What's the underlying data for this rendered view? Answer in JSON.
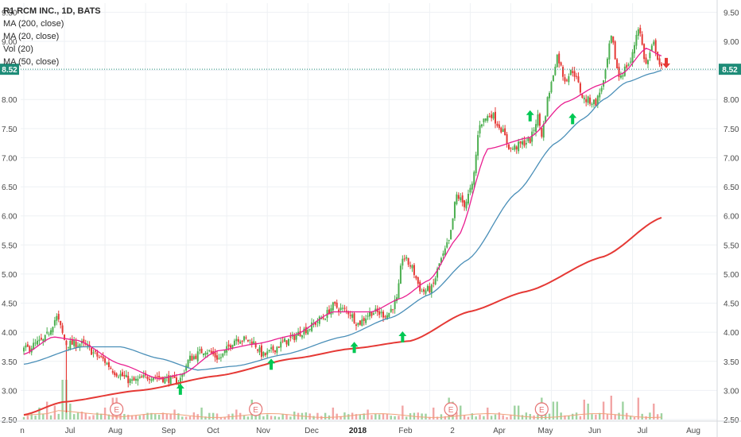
{
  "legend": {
    "title": "R1 RCM INC., 1D, BATS",
    "studies": [
      "MA (200, close)",
      "MA (20, close)",
      "Vol (20)",
      "MA (50, close)"
    ]
  },
  "price_marker": "8.52",
  "earnings_marker": "E",
  "colors": {
    "up": "#4caf50",
    "down": "#e53935",
    "ma200": "#e53935",
    "ma20": "#e91e90",
    "ma50": "#4a8fb8",
    "arrow_up": "#00c853",
    "arrow_down": "#e53935",
    "price_line": "#1e8c78",
    "grid": "#eef1f4",
    "axis_text": "#4a4a4a",
    "earnings": "#e57373"
  },
  "chart_data": {
    "type": "candlestick",
    "title": "R1 RCM INC., 1D, BATS",
    "ylim": [
      2.2,
      9.6
    ],
    "y_ticks": [
      "2.50",
      "3.00",
      "3.50",
      "4.00",
      "4.50",
      "5.00",
      "5.50",
      "6.00",
      "6.50",
      "7.00",
      "7.50",
      "8.00",
      "8.50",
      "9.00",
      "9.50"
    ],
    "x_tick_labels": [
      "n",
      "Jul",
      "Aug",
      "Sep",
      "Oct",
      "Nov",
      "Dec",
      "2018",
      "Feb",
      "2",
      "Apr",
      "May",
      "Jun",
      "Jul",
      "Aug"
    ],
    "current_price": 8.52,
    "price_keyframes": [
      [
        0,
        3.7
      ],
      [
        10,
        3.85
      ],
      [
        17,
        4.25
      ],
      [
        22,
        3.8
      ],
      [
        30,
        3.8
      ],
      [
        40,
        3.55
      ],
      [
        48,
        3.3
      ],
      [
        56,
        3.15
      ],
      [
        66,
        3.25
      ],
      [
        74,
        3.2
      ],
      [
        80,
        3.15
      ],
      [
        86,
        3.55
      ],
      [
        94,
        3.7
      ],
      [
        101,
        3.55
      ],
      [
        110,
        3.9
      ],
      [
        118,
        3.85
      ],
      [
        124,
        3.6
      ],
      [
        136,
        3.85
      ],
      [
        146,
        4.05
      ],
      [
        155,
        4.25
      ],
      [
        160,
        4.45
      ],
      [
        168,
        4.35
      ],
      [
        173,
        4.15
      ],
      [
        180,
        4.35
      ],
      [
        188,
        4.3
      ],
      [
        193,
        4.55
      ],
      [
        196,
        5.3
      ],
      [
        200,
        5.15
      ],
      [
        206,
        4.7
      ],
      [
        211,
        4.75
      ],
      [
        216,
        5.25
      ],
      [
        220,
        5.55
      ],
      [
        224,
        6.35
      ],
      [
        228,
        6.2
      ],
      [
        232,
        6.5
      ],
      [
        236,
        7.6
      ],
      [
        242,
        7.75
      ],
      [
        246,
        7.55
      ],
      [
        252,
        7.15
      ],
      [
        262,
        7.3
      ],
      [
        266,
        7.7
      ],
      [
        268,
        7.4
      ],
      [
        272,
        8.15
      ],
      [
        276,
        8.75
      ],
      [
        280,
        8.35
      ],
      [
        284,
        8.5
      ],
      [
        290,
        8.0
      ],
      [
        296,
        7.95
      ],
      [
        300,
        8.3
      ],
      [
        304,
        9.05
      ],
      [
        308,
        8.4
      ],
      [
        314,
        8.65
      ],
      [
        318,
        9.25
      ],
      [
        322,
        8.6
      ],
      [
        326,
        8.95
      ],
      [
        330,
        8.52
      ]
    ],
    "ma200_keyframes": [
      [
        0,
        2.58
      ],
      [
        20,
        2.8
      ],
      [
        60,
        3.0
      ],
      [
        100,
        3.25
      ],
      [
        140,
        3.55
      ],
      [
        170,
        3.72
      ],
      [
        200,
        3.85
      ],
      [
        230,
        4.35
      ],
      [
        260,
        4.7
      ],
      [
        300,
        5.3
      ],
      [
        330,
        5.97
      ]
    ],
    "ma50_keyframes": [
      [
        0,
        3.45
      ],
      [
        30,
        3.75
      ],
      [
        50,
        3.75
      ],
      [
        70,
        3.55
      ],
      [
        90,
        3.35
      ],
      [
        110,
        3.42
      ],
      [
        135,
        3.62
      ],
      [
        165,
        3.92
      ],
      [
        190,
        4.25
      ],
      [
        210,
        4.65
      ],
      [
        230,
        5.25
      ],
      [
        255,
        6.4
      ],
      [
        275,
        7.25
      ],
      [
        290,
        7.68
      ],
      [
        300,
        8.0
      ],
      [
        312,
        8.3
      ],
      [
        325,
        8.45
      ],
      [
        330,
        8.5
      ]
    ],
    "ma20_keyframes": [
      [
        0,
        3.62
      ],
      [
        15,
        3.92
      ],
      [
        28,
        3.86
      ],
      [
        50,
        3.45
      ],
      [
        70,
        3.2
      ],
      [
        82,
        3.28
      ],
      [
        100,
        3.68
      ],
      [
        120,
        3.8
      ],
      [
        140,
        3.95
      ],
      [
        160,
        4.35
      ],
      [
        180,
        4.35
      ],
      [
        195,
        4.58
      ],
      [
        210,
        4.9
      ],
      [
        225,
        5.65
      ],
      [
        240,
        7.15
      ],
      [
        262,
        7.35
      ],
      [
        280,
        7.95
      ],
      [
        298,
        8.25
      ],
      [
        310,
        8.45
      ],
      [
        322,
        8.88
      ],
      [
        330,
        8.75
      ]
    ],
    "up_arrows": [
      [
        81,
        3.02
      ],
      [
        128,
        3.45
      ],
      [
        171,
        3.74
      ],
      [
        196,
        3.92
      ],
      [
        262,
        7.72
      ],
      [
        284,
        7.67
      ]
    ],
    "down_arrow": [
      330,
      8.62
    ],
    "earnings_days": [
      48,
      120,
      221,
      268
    ],
    "volume": [
      [
        8,
        0.3
      ],
      [
        12,
        0.45
      ],
      [
        16,
        0.35
      ],
      [
        21,
        1.0
      ],
      [
        23,
        0.4
      ],
      [
        30,
        0.2
      ],
      [
        42,
        0.3
      ],
      [
        47,
        0.55
      ],
      [
        49,
        0.35
      ],
      [
        78,
        0.25
      ],
      [
        92,
        0.3
      ],
      [
        110,
        0.25
      ],
      [
        118,
        0.5
      ],
      [
        121,
        0.4
      ],
      [
        140,
        0.2
      ],
      [
        160,
        0.3
      ],
      [
        178,
        0.25
      ],
      [
        196,
        0.35
      ],
      [
        212,
        0.3
      ],
      [
        220,
        0.55
      ],
      [
        222,
        0.45
      ],
      [
        226,
        0.35
      ],
      [
        240,
        0.3
      ],
      [
        255,
        0.35
      ],
      [
        268,
        0.55
      ],
      [
        270,
        0.4
      ],
      [
        275,
        0.45
      ],
      [
        290,
        0.5
      ],
      [
        292,
        0.4
      ],
      [
        300,
        0.45
      ],
      [
        304,
        0.6
      ],
      [
        310,
        0.45
      ],
      [
        318,
        0.55
      ],
      [
        326,
        0.4
      ]
    ]
  }
}
